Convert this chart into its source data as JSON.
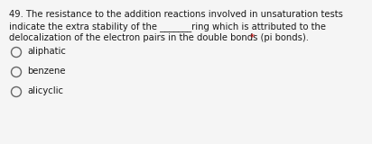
{
  "background_color": "#f5f5f5",
  "question_text_lines": [
    "49. The resistance to the addition reactions involved in unsaturation tests",
    "indicate the extra stability of the _______ring which is attributed to the",
    "delocalization of the electron pairs in the double bonds (pi bonds). *"
  ],
  "options": [
    "aliphatic",
    "benzene",
    "alicyclic"
  ],
  "text_color": "#1a1a1a",
  "asterisk_color": "#cc0000",
  "font_size": 7.2,
  "option_font_size": 7.2,
  "circle_color": "#666666",
  "circle_linewidth": 1.0
}
